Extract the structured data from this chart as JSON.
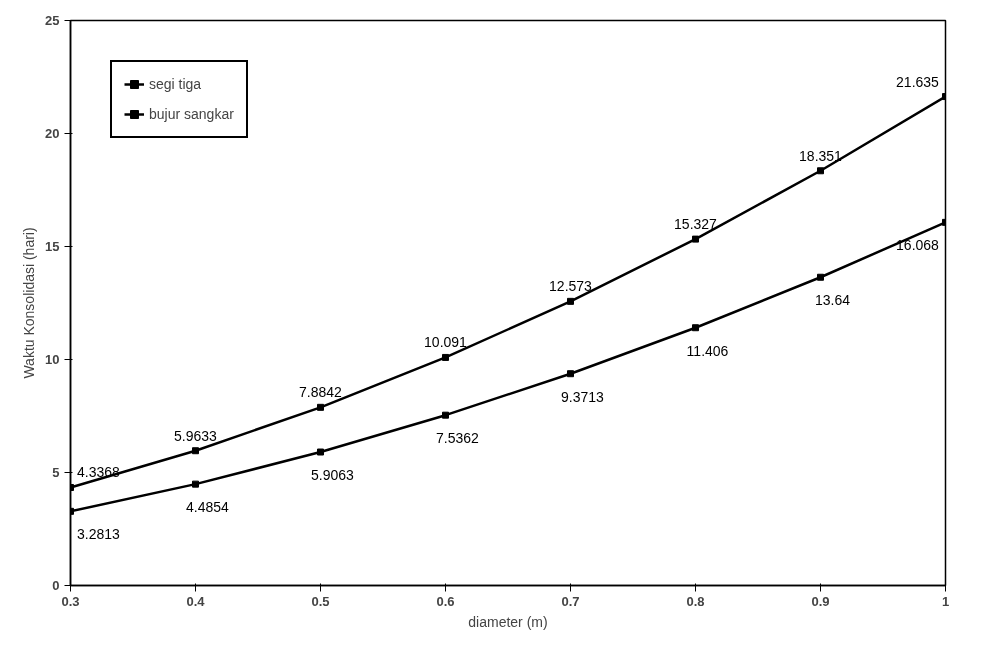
{
  "chart_data": {
    "type": "line",
    "xlabel": "diameter (m)",
    "ylabel": "Waktu Konsolidasi (hari)",
    "x": [
      0.3,
      0.4,
      0.5,
      0.6,
      0.7,
      0.8,
      0.9,
      1
    ],
    "series": [
      {
        "name": "segi tiga",
        "color": "#000000",
        "values": [
          4.3368,
          5.9633,
          7.8842,
          10.091,
          12.573,
          15.327,
          18.351,
          21.635
        ]
      },
      {
        "name": "bujur sangkar",
        "color": "#000000",
        "values": [
          3.2813,
          4.4854,
          5.9063,
          7.5362,
          9.3713,
          11.406,
          13.64,
          16.068
        ]
      }
    ],
    "xlim": [
      0.3,
      1
    ],
    "xticks": [
      0.3,
      0.4,
      0.5,
      0.6,
      0.7,
      0.8,
      0.9,
      1
    ],
    "ylim": [
      0,
      25
    ],
    "yticks": [
      0,
      5,
      10,
      15,
      20,
      25
    ],
    "data_labels": true,
    "legend": "top left",
    "grid": false,
    "marker": "square",
    "line_style": "solid"
  }
}
